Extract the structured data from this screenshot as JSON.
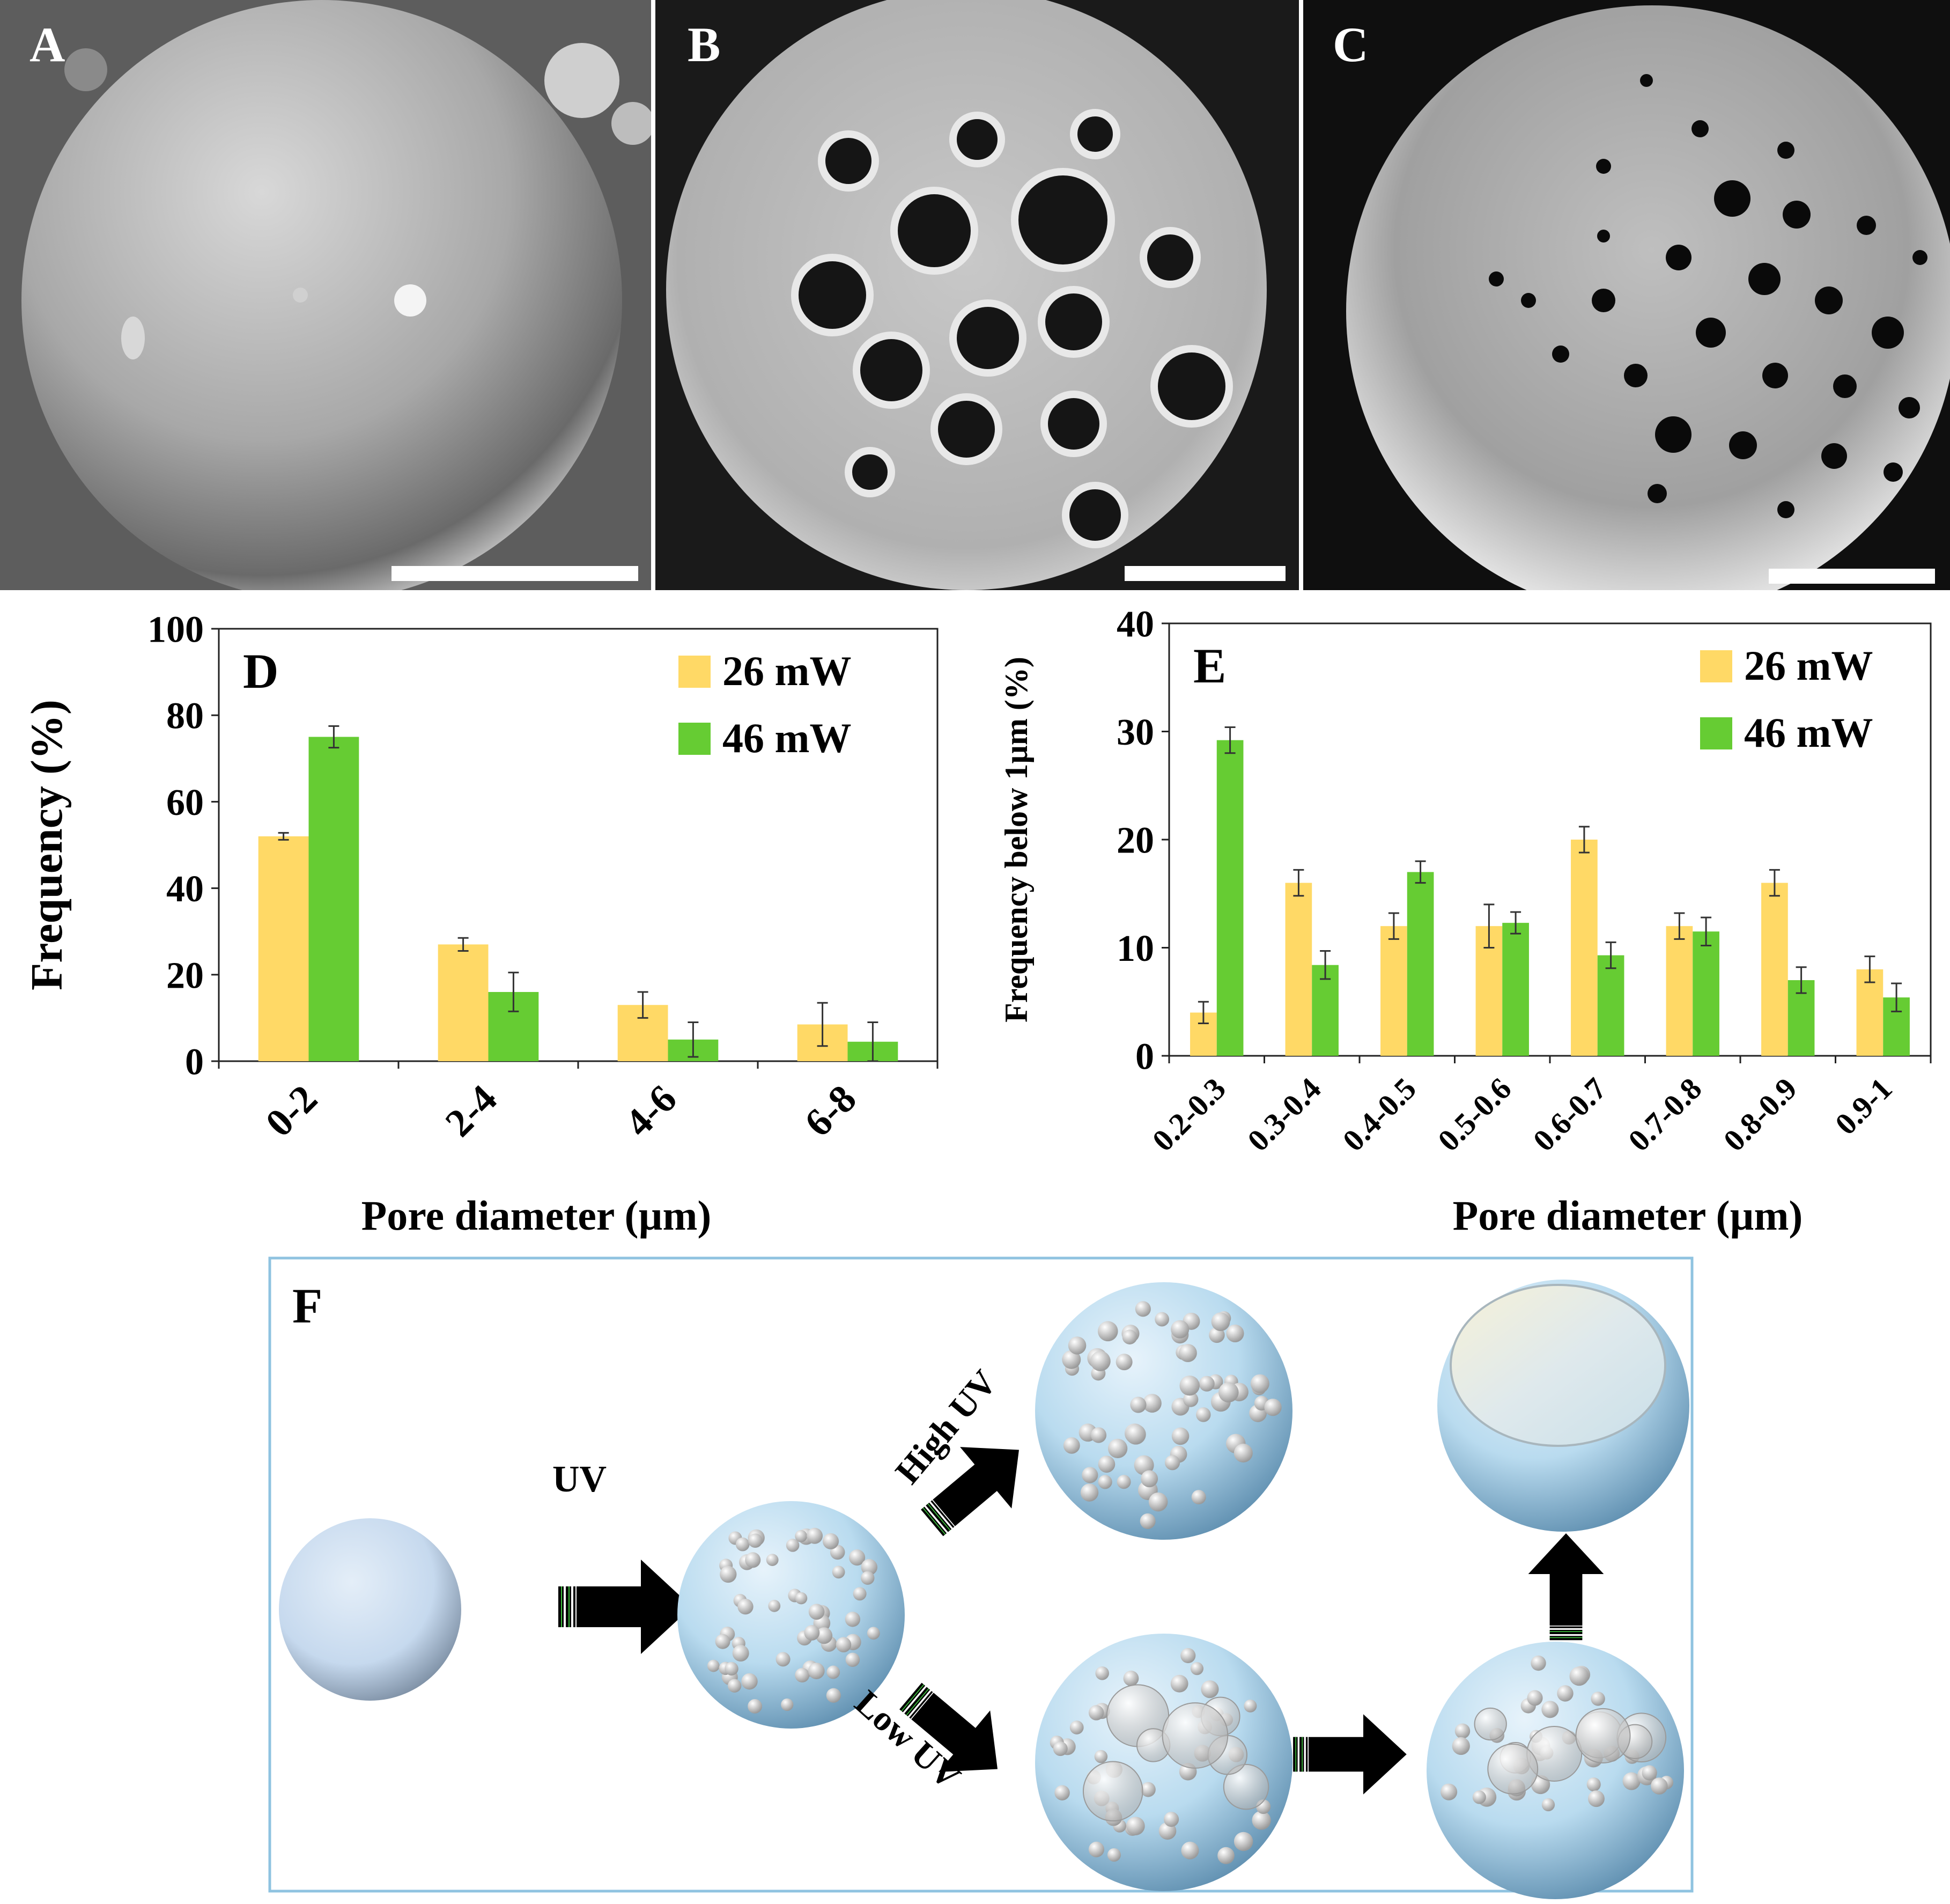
{
  "panels": {
    "A": {
      "letter": "A"
    },
    "B": {
      "letter": "B"
    },
    "C": {
      "letter": "C"
    },
    "F": {
      "letter": "F"
    }
  },
  "colors": {
    "series_26": "#FFD966",
    "series_46": "#66CC33",
    "sphere": "#bcdcee"
  },
  "chart_data": [
    {
      "id": "D",
      "type": "bar",
      "panel_label": "D",
      "categories": [
        "0-2",
        "2-4",
        "4-6",
        "6-8"
      ],
      "series": [
        {
          "name": "26 mW",
          "values": [
            52,
            27,
            13,
            8.5
          ],
          "errors": [
            0.8,
            1.5,
            3,
            5
          ]
        },
        {
          "name": "46 mW",
          "values": [
            75,
            16,
            5,
            4.5
          ],
          "errors": [
            2.5,
            4.5,
            4,
            4.5
          ]
        }
      ],
      "ylabel": "Frequency (%)",
      "xlabel": "Pore diameter (µm)",
      "ylim": [
        0,
        100
      ],
      "yticks": [
        0,
        20,
        40,
        60,
        80,
        100
      ],
      "legend": "top-right",
      "grid": false
    },
    {
      "id": "E",
      "type": "bar",
      "panel_label": "E",
      "categories": [
        "0.2-0.3",
        "0.3-0.4",
        "0.4-0.5",
        "0.5-0.6",
        "0.6-0.7",
        "0.7-0.8",
        "0.8-0.9",
        "0.9-1"
      ],
      "series": [
        {
          "name": "26 mW",
          "values": [
            4,
            16,
            12,
            12,
            20,
            12,
            16,
            8
          ],
          "errors": [
            1,
            1.2,
            1.2,
            2,
            1.2,
            1.2,
            1.2,
            1.2
          ]
        },
        {
          "name": "46 mW",
          "values": [
            29.2,
            8.4,
            17,
            12.3,
            9.3,
            11.5,
            7,
            5.4
          ],
          "errors": [
            1.2,
            1.3,
            1,
            1,
            1.2,
            1.3,
            1.2,
            1.3
          ]
        }
      ],
      "ylabel": "Frequency below 1µm (%)",
      "xlabel": "Pore diameter (µm)",
      "ylim": [
        0,
        40
      ],
      "yticks": [
        0,
        10,
        20,
        30,
        40
      ],
      "legend": "top-right",
      "grid": false
    }
  ],
  "diagram": {
    "uv_label": "UV",
    "high_uv_label": "High UV",
    "low_uv_label": "Low UV"
  }
}
